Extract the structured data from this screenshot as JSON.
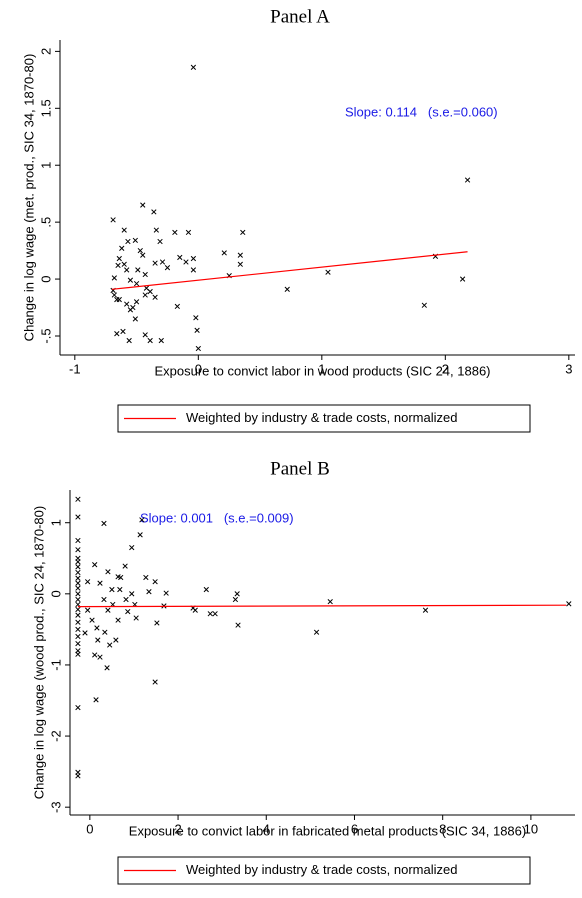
{
  "chart_data": [
    {
      "type": "scatter",
      "title": "Panel A",
      "xlabel": "Exposure to convict labor in wood products (SIC 24, 1886)",
      "ylabel": "Change in log wage (met. prod., SIC 34, 1870-80)",
      "annotation": "Slope: 0.114   (s.e.=0.060)",
      "xlim": [
        -1.12,
        3.05
      ],
      "ylim": [
        -0.667,
        2.1
      ],
      "xticks": [
        -1,
        0,
        1,
        2,
        3
      ],
      "yticks": [
        {
          "value": -0.5,
          "label": "-.5"
        },
        0,
        {
          "value": 0.5,
          "label": ".5"
        },
        1,
        1.5,
        2
      ],
      "legend": "bottom",
      "series": [
        {
          "color": "#000000",
          "marker": "x",
          "x": [
            -0.04,
            2.18,
            2.14,
            1.92,
            1.83,
            1.05,
            0.72,
            0.36,
            0.34,
            0.34,
            0.21,
            0.25,
            -0.04,
            -0.04,
            -0.08,
            -0.02,
            -0.01,
            0,
            -0.19,
            -0.15,
            -0.17,
            -0.31,
            -0.34,
            -0.35,
            -0.29,
            -0.45,
            -0.36,
            -0.39,
            -0.42,
            -0.43,
            -0.35,
            -0.3,
            -0.39,
            -0.43,
            -0.47,
            -0.45,
            -0.49,
            -0.43,
            -0.51,
            -0.57,
            -0.58,
            -0.55,
            -0.58,
            -0.55,
            -0.51,
            -0.56,
            -0.61,
            -0.64,
            -0.66,
            -0.68,
            -0.69,
            -0.64,
            -0.65,
            -0.6,
            -0.69,
            -0.68,
            -0.66,
            -0.6,
            -0.5,
            -0.5,
            -0.25,
            -0.1,
            -0.62,
            -0.53
          ],
          "values": [
            1.86,
            0.87,
            0,
            0.2,
            -0.23,
            0.06,
            -0.09,
            0.41,
            0.21,
            0.13,
            0.23,
            0.03,
            0.18,
            0.08,
            0.41,
            -0.34,
            -0.45,
            -0.61,
            0.41,
            0.19,
            -0.24,
            0.33,
            0.43,
            0.14,
            0.15,
            0.65,
            0.59,
            -0.11,
            -0.08,
            -0.14,
            -0.16,
            -0.54,
            -0.54,
            -0.49,
            0.25,
            0.21,
            0.08,
            0.04,
            0.34,
            0.33,
            0.08,
            -0.01,
            -0.22,
            -0.27,
            -0.35,
            -0.54,
            -0.46,
            -0.18,
            -0.18,
            -0.14,
            0.52,
            0.18,
            0.12,
            0.13,
            -0.1,
            0.01,
            -0.48,
            0.43,
            -0.2,
            -0.04,
            0.1,
            0.15,
            0.27,
            -0.25
          ]
        },
        {
          "name": "Weighted by industry & trade costs, normalized",
          "color": "#ff0000",
          "marker": "line",
          "x": [
            -0.7,
            2.18
          ],
          "values": [
            -0.09,
            0.24
          ]
        }
      ]
    },
    {
      "type": "scatter",
      "title": "Panel B",
      "xlabel": "Exposure to convict labor in fabricated metal products (SIC 34, 1886)",
      "ylabel": "Change in log wage (wood prod., SIC 24, 1870-80)",
      "annotation": "Slope: 0.001   (s.e.=0.009)",
      "xlim": [
        -0.45,
        11.0
      ],
      "ylim": [
        -3.11,
        1.46
      ],
      "xticks": [
        0,
        2,
        4,
        6,
        8,
        10
      ],
      "yticks": [
        -3,
        -2,
        -1,
        0,
        1
      ],
      "legend": "bottom",
      "series": [
        {
          "color": "#000000",
          "marker": "x",
          "x": [
            -0.27,
            -0.27,
            -0.27,
            -0.27,
            -0.27,
            -0.27,
            -0.27,
            -0.27,
            -0.27,
            -0.27,
            -0.27,
            -0.27,
            -0.27,
            -0.27,
            -0.27,
            -0.27,
            -0.27,
            -0.27,
            -0.27,
            -0.27,
            -0.27,
            -0.27,
            -0.27,
            -0.27,
            -0.27,
            0.32,
            1.18,
            1.14,
            0.95,
            0.8,
            0.7,
            0.68,
            1.27,
            1.34,
            1.48,
            1.73,
            1.68,
            1.52,
            1.48,
            2.34,
            2.39,
            2.64,
            2.73,
            2.84,
            3.3,
            3.34,
            3.36,
            5.14,
            5.45,
            7.61,
            10.86,
            0.11,
            -0.05,
            0.16,
            0.14,
            0.11,
            0.23,
            0.39,
            0.45,
            0.59,
            0.32,
            0.41,
            0.52,
            0.64,
            0.82,
            0.86,
            0.95,
            1.02,
            1.05,
            0.23,
            0.41,
            0.5,
            0.64,
            -0.05,
            0.05,
            -0.11,
            0.18,
            0.34
          ],
          "values": [
            1.33,
            1.08,
            0.75,
            0.62,
            0.5,
            0.45,
            0.38,
            0.3,
            0.22,
            0.15,
            0.08,
            0,
            -0.08,
            -0.15,
            -0.22,
            -0.3,
            -0.4,
            -0.5,
            -0.6,
            -0.7,
            -0.8,
            -0.85,
            -1.6,
            -2.51,
            -2.56,
            0.99,
            1.04,
            0.83,
            0.65,
            0.39,
            0.23,
            0.06,
            0.23,
            0.03,
            0.17,
            0.01,
            -0.17,
            -0.41,
            -1.24,
            -0.2,
            -0.23,
            0.06,
            -0.28,
            -0.28,
            -0.08,
            0,
            -0.44,
            -0.54,
            -0.11,
            -0.23,
            -0.14,
            0.41,
            0.17,
            -0.48,
            -1.49,
            -0.86,
            -0.89,
            -1.04,
            -0.72,
            -0.65,
            -0.08,
            -0.23,
            -0.15,
            -0.37,
            -0.08,
            -0.25,
            0,
            -0.15,
            -0.34,
            0.15,
            0.31,
            0.06,
            0.24,
            -0.23,
            -0.37,
            -0.55,
            -0.65,
            -0.54
          ]
        },
        {
          "name": "Weighted by industry & trade costs, normalized",
          "color": "#ff0000",
          "marker": "line",
          "x": [
            -0.27,
            10.8
          ],
          "values": [
            -0.18,
            -0.16
          ]
        }
      ]
    }
  ]
}
